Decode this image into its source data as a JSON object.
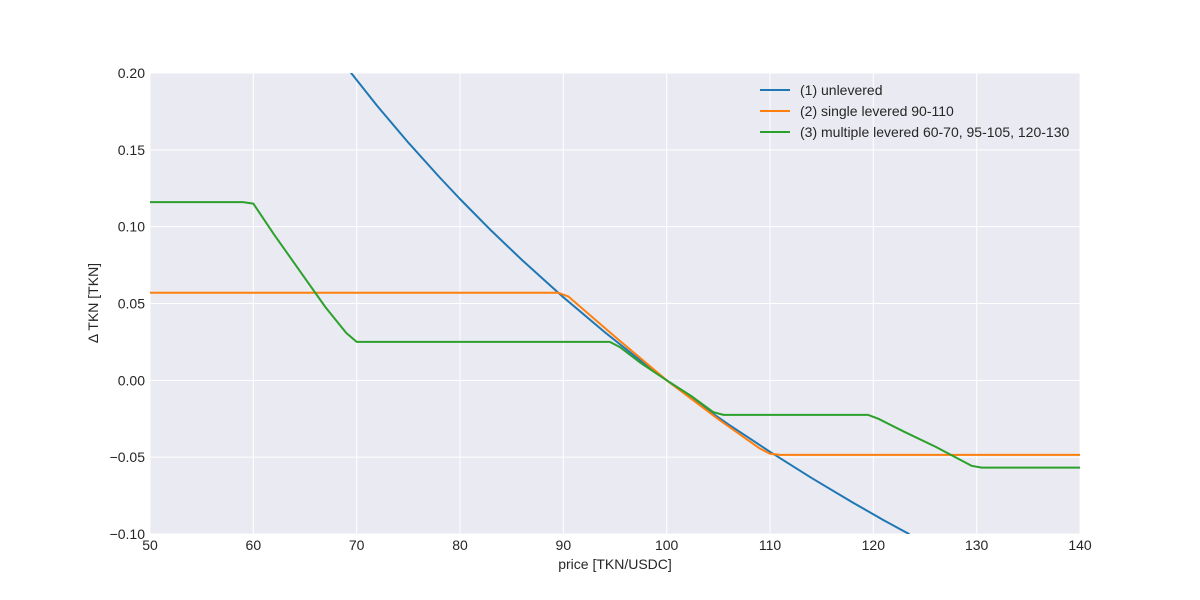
{
  "chart_data": {
    "type": "line",
    "xlabel": "price [TKN/USDC]",
    "ylabel": "Δ TKN [TKN]",
    "xlim": [
      50,
      140
    ],
    "ylim": [
      -0.1,
      0.2
    ],
    "xticks": [
      50,
      60,
      70,
      80,
      90,
      100,
      110,
      120,
      130,
      140
    ],
    "xtick_labels": [
      "50",
      "60",
      "70",
      "80",
      "90",
      "100",
      "110",
      "120",
      "130",
      "140"
    ],
    "yticks": [
      -0.1,
      -0.05,
      0.0,
      0.05,
      0.1,
      0.15,
      0.2
    ],
    "ytick_labels": [
      "−0.10",
      "−0.05",
      "0.00",
      "0.05",
      "0.10",
      "0.15",
      "0.20"
    ],
    "grid": true,
    "legend_position": "top-right",
    "series": [
      {
        "name": "(1) unlevered",
        "color": "#1f77b4",
        "x": [
          69.4,
          72,
          75,
          78,
          80,
          83,
          86,
          90,
          94,
          97,
          100,
          103,
          106,
          110,
          114,
          118,
          121,
          123.5
        ],
        "y": [
          0.2005,
          0.1785,
          0.1547,
          0.1323,
          0.118,
          0.0976,
          0.0783,
          0.0541,
          0.0314,
          0.0153,
          0.0,
          -0.0148,
          -0.0288,
          -0.0465,
          -0.0634,
          -0.0795,
          -0.091,
          -0.1002
        ]
      },
      {
        "name": "(2) single levered 90-110",
        "color": "#ff7f0e",
        "x": [
          50,
          59,
          60,
          70,
          80,
          89.5,
          90.5,
          95,
          100,
          105,
          109,
          110,
          111,
          120,
          130,
          140
        ],
        "y": [
          0.057,
          0.057,
          0.057,
          0.057,
          0.057,
          0.057,
          0.0545,
          0.0284,
          0.0,
          -0.0253,
          -0.0443,
          -0.0478,
          -0.0485,
          -0.0485,
          -0.0485,
          -0.0485
        ]
      },
      {
        "name": "(3) multiple levered 60-70, 95-105, 120-130",
        "color": "#2ca02c",
        "x": [
          50,
          59,
          60,
          62,
          65,
          67,
          69,
          70,
          80,
          90,
          94.5,
          95.5,
          97.5,
          100,
          102.5,
          104.5,
          105.5,
          110,
          119.5,
          120.5,
          123,
          126,
          129.5,
          130.5,
          140
        ],
        "y": [
          0.116,
          0.116,
          0.115,
          0.095,
          0.0664,
          0.0474,
          0.0308,
          0.025,
          0.025,
          0.025,
          0.025,
          0.0215,
          0.0112,
          0.0,
          -0.0108,
          -0.0207,
          -0.0225,
          -0.0225,
          -0.0225,
          -0.025,
          -0.0335,
          -0.0431,
          -0.0556,
          -0.0568,
          -0.0568
        ]
      }
    ]
  }
}
